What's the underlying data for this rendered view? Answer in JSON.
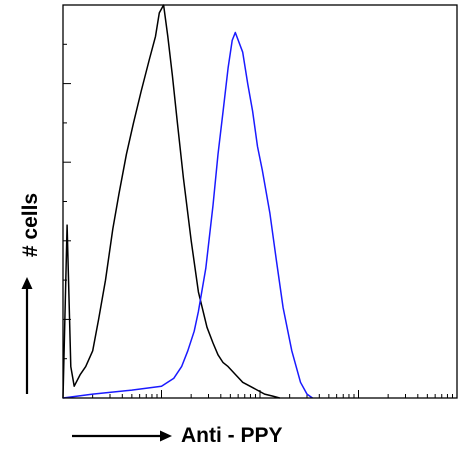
{
  "chart_data": {
    "type": "line",
    "title": "",
    "xlabel": "Anti - PPY",
    "ylabel": "# cells",
    "xscale": "log",
    "xlim": [
      1,
      10000
    ],
    "ylim": [
      0,
      100
    ],
    "grid": false,
    "series": [
      {
        "color": "#000000",
        "x": [
          1.0,
          1.1,
          1.2,
          1.3,
          1.5,
          1.7,
          2.0,
          2.3,
          2.7,
          3.2,
          3.7,
          4.4,
          5.2,
          6.2,
          7.5,
          8.7,
          9.5,
          10.5,
          11.6,
          12.9,
          14.5,
          16.7,
          20.0,
          23.7,
          29.0,
          33.3,
          37.5,
          42.2,
          47.4,
          56.2,
          66.7,
          79.1,
          93.9,
          111.4,
          133.4,
          158.5
        ],
        "y": [
          0,
          44,
          8,
          3,
          6,
          8,
          12,
          20,
          30,
          43,
          52,
          62,
          70,
          78,
          86,
          92,
          98,
          100,
          92,
          82,
          70,
          56,
          40,
          27,
          18,
          14,
          11,
          9,
          8,
          6,
          4,
          3,
          2,
          1,
          0.5,
          0
        ]
      },
      {
        "color": "#1a1aff",
        "x": [
          1.0,
          2.0,
          5.0,
          10.0,
          13.3,
          16.0,
          18.5,
          21.5,
          23.7,
          28.2,
          33.3,
          37.5,
          42.2,
          47.4,
          52.2,
          56.2,
          66.7,
          75.0,
          84.1,
          94.3,
          105.6,
          125.9,
          146.8,
          171.4,
          210.2,
          257.9,
          300.0,
          340.8
        ],
        "y": [
          0,
          1,
          2,
          3,
          5,
          8,
          12,
          17,
          22,
          33,
          49,
          62,
          73,
          84,
          91,
          93,
          88,
          80,
          73,
          64,
          58,
          47,
          35,
          23,
          12,
          4,
          1,
          0
        ]
      }
    ]
  }
}
